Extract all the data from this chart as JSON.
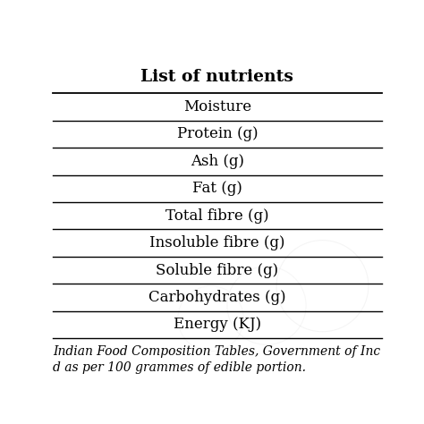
{
  "title": "List of nutrients",
  "rows": [
    "Moisture",
    "Protein (g)",
    "Ash (g)",
    "Fat (g)",
    "Total fibre (g)",
    "Insoluble fibre (g)",
    "Soluble fibre (g)",
    "Carbohydrates (g)",
    "Energy (KJ)"
  ],
  "footer_line1": "Indian Food Composition Tables, Government of Inc",
  "footer_line2": "d as per 100 grammes of edible portion.",
  "bg_color": "#ffffff",
  "text_color": "#000000",
  "line_color": "#000000",
  "title_fontsize": 13.5,
  "row_fontsize": 12,
  "footer_fontsize": 10,
  "fig_width": 4.74,
  "fig_height": 4.74
}
